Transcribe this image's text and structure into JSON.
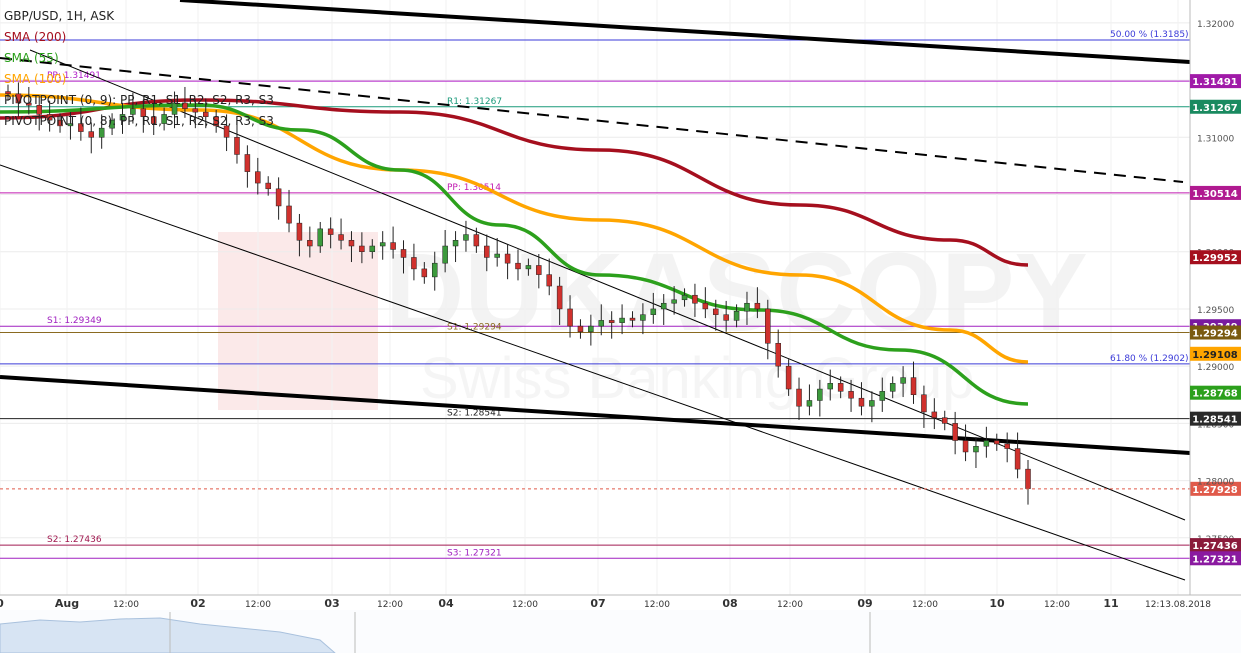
{
  "chart_data": {
    "type": "candlestick",
    "title": "GBP/USD, 1H, ASK",
    "watermark": {
      "brand": "DUKASCOPY",
      "tagline": "Swiss Banking Group"
    },
    "ylim": [
      1.27,
      1.322
    ],
    "y_ticks": [
      "1.32000",
      "1.31500",
      "1.31000",
      "1.30500",
      "1.30000",
      "1.29500",
      "1.29000",
      "1.28500",
      "1.28000",
      "1.27500"
    ],
    "x_ticks": [
      "0",
      "Aug",
      "12:00",
      "02",
      "12:00",
      "03",
      "12:00",
      "04",
      "12:00",
      "07",
      "12:00",
      "08",
      "12:00",
      "09",
      "12:00",
      "10",
      "12:00",
      "11",
      "12:13.08.2018"
    ],
    "indicators": [
      {
        "label": "SMA (200)",
        "color": "#a50f1e"
      },
      {
        "label": "SMA (55)",
        "color": "#2ca01c"
      },
      {
        "label": "SMA (100)",
        "color": "#ffa500"
      }
    ],
    "pivot_legend": [
      {
        "label": "PIVOTPOINT (0, 9): PP, R1, S1, R2, S2, R3, S3"
      },
      {
        "label": "PIVOTPOINT (0, 8): PP, R1, S1, R2, S2, R3, S3"
      }
    ],
    "levels": [
      {
        "label": "50.00 % (1.3185)",
        "value": 1.3185,
        "color": "#3a3ad8",
        "badge": null
      },
      {
        "label": "PP: 1.31491",
        "value": 1.31491,
        "color": "#b01cc8",
        "badge": "1.31491",
        "badge_color": "#a01aa8"
      },
      {
        "label": "R1: 1.31267",
        "value": 1.31267,
        "color": "#1a9a7a",
        "badge": "1.31267",
        "badge_color": "#1a8a60"
      },
      {
        "label": "PP: 1.30514",
        "value": 1.30514,
        "color": "#c01ab0",
        "badge": "1.30514",
        "badge_color": "#b01a90"
      },
      {
        "label": "S1: 1.29349",
        "value": 1.29349,
        "color": "#a020c0",
        "badge": "1.29349",
        "badge_color": "#7a1aa0"
      },
      {
        "label": "S1: 1.29294",
        "value": 1.29294,
        "color": "#8a6a20",
        "badge": "1.29294",
        "badge_color": "#7a5a10"
      },
      {
        "label": "61.80 % (1.2902)",
        "value": 1.2902,
        "color": "#3a3ad8",
        "badge": null
      },
      {
        "label": "S2: 1.28541",
        "value": 1.28541,
        "color": "#222222",
        "badge": "1.28541",
        "badge_color": "#2a2a2a"
      },
      {
        "label": "S2: 1.27436",
        "value": 1.27436,
        "color": "#a01a50",
        "badge": "1.27436",
        "badge_color": "#8a1a3a"
      },
      {
        "label": "S3: 1.27321",
        "value": 1.27321,
        "color": "#a020c0",
        "badge": "1.27321",
        "badge_color": "#8a1aa0"
      }
    ],
    "ma_badges": [
      {
        "value": 1.29952,
        "label": "1.29952",
        "color": "#a50f1e"
      },
      {
        "value": 1.29108,
        "label": "1.29108",
        "color": "#ffa500"
      },
      {
        "value": 1.28768,
        "label": "1.28768",
        "color": "#2ca01c"
      }
    ],
    "current_price": {
      "value": 1.27928,
      "label": "1.27928",
      "color": "#e05a4a"
    },
    "candles_close": [
      1.3138,
      1.313,
      1.3128,
      1.312,
      1.3115,
      1.311,
      1.3112,
      1.3105,
      1.31,
      1.3108,
      1.3115,
      1.312,
      1.3125,
      1.3118,
      1.3112,
      1.312,
      1.313,
      1.3125,
      1.3122,
      1.3118,
      1.311,
      1.31,
      1.3085,
      1.307,
      1.306,
      1.3055,
      1.304,
      1.3025,
      1.301,
      1.3005,
      1.302,
      1.3015,
      1.301,
      1.3005,
      1.3,
      1.3005,
      1.3008,
      1.3002,
      1.2995,
      1.2985,
      1.2978,
      1.299,
      1.3005,
      1.301,
      1.3015,
      1.3005,
      1.2995,
      1.2998,
      1.299,
      1.2985,
      1.2988,
      1.298,
      1.297,
      1.295,
      1.2935,
      1.293,
      1.2935,
      1.294,
      1.2938,
      1.2942,
      1.294,
      1.2945,
      1.295,
      1.2955,
      1.2958,
      1.2962,
      1.2955,
      1.295,
      1.2945,
      1.294,
      1.2948,
      1.2955,
      1.295,
      1.292,
      1.29,
      1.288,
      1.2865,
      1.287,
      1.288,
      1.2885,
      1.2878,
      1.2872,
      1.2865,
      1.287,
      1.2878,
      1.2885,
      1.289,
      1.2875,
      1.286,
      1.2855,
      1.285,
      1.2835,
      1.2825,
      1.283,
      1.2835,
      1.2832,
      1.2828,
      1.281,
      1.2793
    ]
  }
}
